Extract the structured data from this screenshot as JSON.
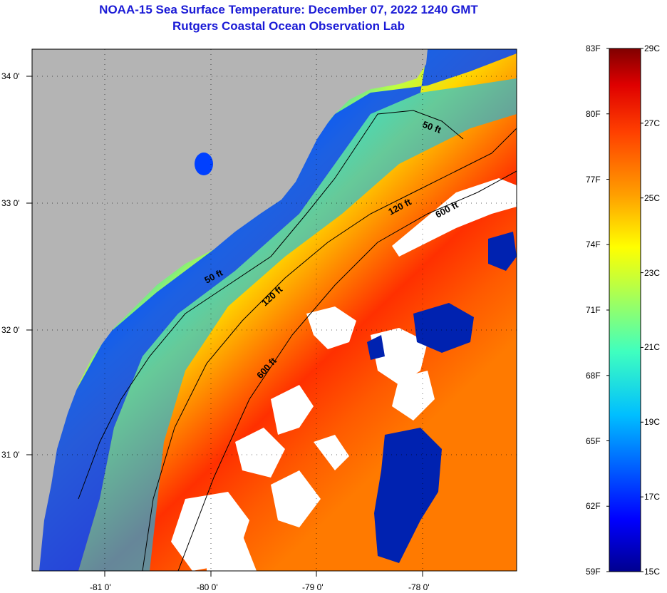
{
  "title": {
    "line1": "NOAA-15 Sea Surface Temperature:  December 07, 2022 1240 GMT",
    "line2": "Rutgers Coastal Ocean Observation Lab"
  },
  "map": {
    "lat_labels": [
      "34 0'",
      "33 0'",
      "32 0'",
      "31 0'"
    ],
    "lon_labels": [
      "-81 0'",
      "-80 0'",
      "-79 0'",
      "-78 0'"
    ],
    "contours": {
      "c50_a": "50 ft",
      "c50_b": "50 ft",
      "c120_a": "120 ft",
      "c120_b": "120 ft",
      "c600_a": "600 ft",
      "c600_b": "600 ft"
    },
    "colors": {
      "land": "#b4b4b4",
      "cloud": "#ffffff",
      "axis": "#000000"
    }
  },
  "colorbar": {
    "celsius": [
      "29C",
      "27C",
      "25C",
      "23C",
      "21C",
      "19C",
      "17C",
      "15C"
    ],
    "fahrenheit": [
      "83F",
      "80F",
      "77F",
      "74F",
      "71F",
      "68F",
      "65F",
      "62F",
      "59F"
    ],
    "colormap": [
      "#00008f",
      "#0000ff",
      "#0060ff",
      "#00bfff",
      "#3fffbf",
      "#bfff3f",
      "#ffff00",
      "#ff9f00",
      "#ff4000",
      "#df0000",
      "#800000"
    ],
    "range_c": [
      15,
      29
    ],
    "range_f": [
      59,
      83
    ]
  }
}
